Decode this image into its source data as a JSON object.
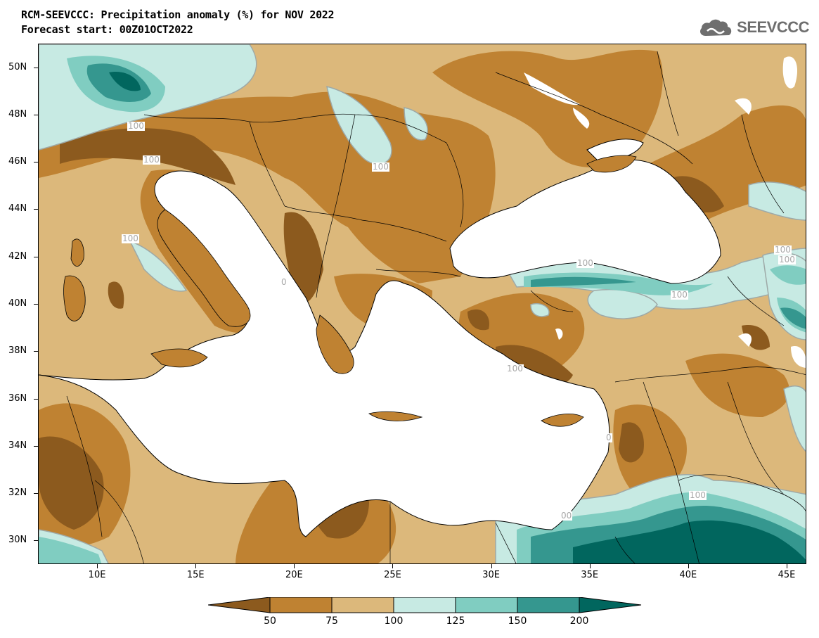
{
  "header": {
    "title_line1": "RCM-SEEVCCC: Precipitation anomaly (%) for NOV 2022",
    "title_line2": "Forecast start: 00Z01OCT2022",
    "logo_text": "SEEVCCC"
  },
  "map": {
    "lon_range": [
      7,
      46
    ],
    "lat_range": [
      29,
      51
    ],
    "lat_labels": [
      "50N",
      "48N",
      "46N",
      "44N",
      "42N",
      "40N",
      "38N",
      "36N",
      "34N",
      "32N",
      "30N"
    ],
    "lat_values": [
      50,
      48,
      46,
      44,
      42,
      40,
      38,
      36,
      34,
      32,
      30
    ],
    "lon_labels": [
      "10E",
      "15E",
      "20E",
      "25E",
      "30E",
      "35E",
      "40E",
      "45E"
    ],
    "lon_values": [
      10,
      15,
      20,
      25,
      30,
      35,
      40,
      45
    ],
    "contour_labels": [
      "100",
      "100",
      "100",
      "100",
      "100",
      "100",
      "100",
      "100",
      "100",
      "100",
      "0",
      "0",
      "00"
    ]
  },
  "colorbar": {
    "labels": [
      "50",
      "75",
      "100",
      "125",
      "150",
      "200"
    ],
    "colors": {
      "below_50": "#8c5a1e",
      "50_75": "#bf8232",
      "75_100": "#dcb87b",
      "100_125": "#c7eae3",
      "125_150": "#80cdc1",
      "150_200": "#35978f",
      "above_200": "#01665e"
    }
  }
}
